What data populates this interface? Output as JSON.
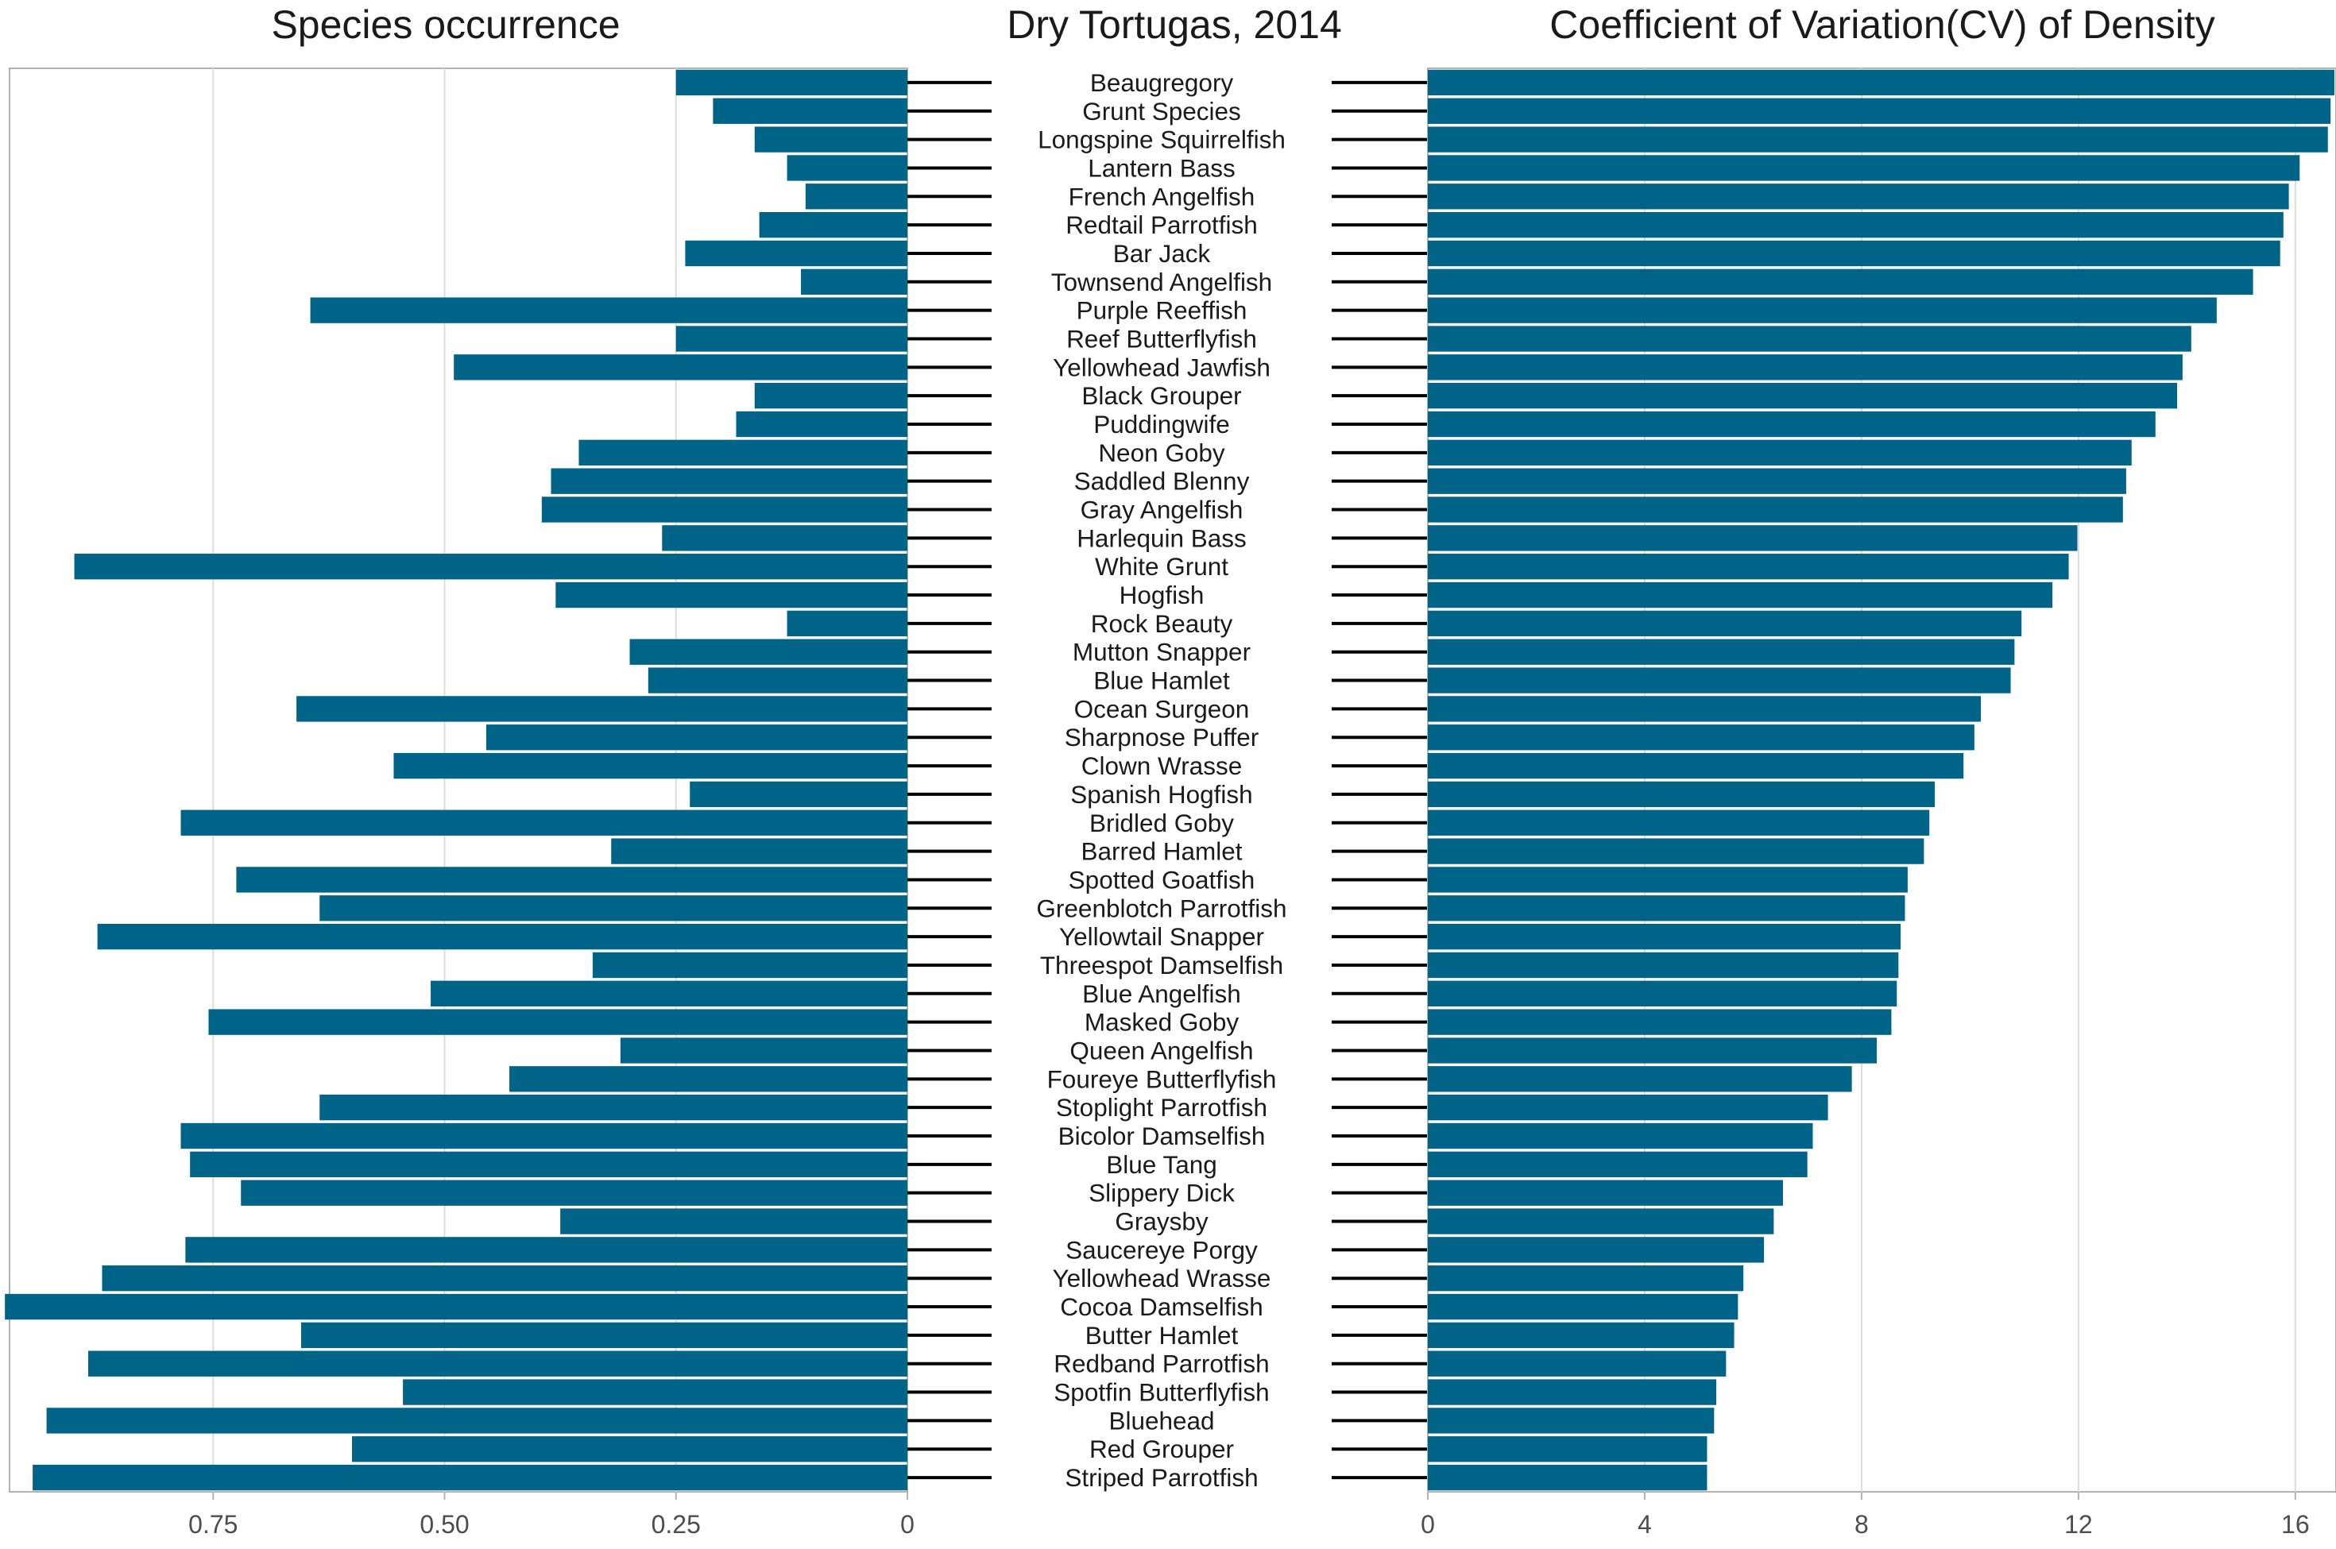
{
  "title": "Dry Tortugas, 2014",
  "colors": {
    "bar": "#006489",
    "grid": "#dcdcdc",
    "frame": "#b3b3b3",
    "connector": "#000000"
  },
  "chart_data": [
    {
      "type": "bar",
      "orientation": "horizontal",
      "direction": "right-to-left",
      "title": "Species occurrence",
      "xlim": [
        0,
        0.97
      ],
      "ticks": [
        0.75,
        0.5,
        0.25,
        0
      ],
      "tick_labels": [
        "0.75",
        "0.50",
        "0.25",
        "0"
      ],
      "grid": true,
      "categories": [
        "Beaugregory",
        "Grunt Species",
        "Longspine Squirrelfish",
        "Lantern Bass",
        "French Angelfish",
        "Redtail Parrotfish",
        "Bar Jack",
        "Townsend Angelfish",
        "Purple Reeffish",
        "Reef Butterflyfish",
        "Yellowhead Jawfish",
        "Black Grouper",
        "Puddingwife",
        "Neon Goby",
        "Saddled Blenny",
        "Gray Angelfish",
        "Harlequin Bass",
        "White Grunt",
        "Hogfish",
        "Rock Beauty",
        "Mutton Snapper",
        "Blue Hamlet",
        "Ocean Surgeon",
        "Sharpnose Puffer",
        "Clown Wrasse",
        "Spanish Hogfish",
        "Bridled Goby",
        "Barred Hamlet",
        "Spotted Goatfish",
        "Greenblotch Parrotfish",
        "Yellowtail Snapper",
        "Threespot Damselfish",
        "Blue Angelfish",
        "Masked Goby",
        "Queen Angelfish",
        "Foureye Butterflyfish",
        "Stoplight Parrotfish",
        "Bicolor Damselfish",
        "Blue Tang",
        "Slippery Dick",
        "Graysby",
        "Saucereye Porgy",
        "Yellowhead Wrasse",
        "Cocoa Damselfish",
        "Butter Hamlet",
        "Redband Parrotfish",
        "Spotfin Butterflyfish",
        "Bluehead",
        "Red Grouper",
        "Striped Parrotfish"
      ],
      "values": [
        0.25,
        0.21,
        0.165,
        0.13,
        0.11,
        0.16,
        0.24,
        0.115,
        0.645,
        0.25,
        0.49,
        0.165,
        0.185,
        0.355,
        0.385,
        0.395,
        0.265,
        0.9,
        0.38,
        0.13,
        0.3,
        0.28,
        0.66,
        0.455,
        0.555,
        0.235,
        0.785,
        0.32,
        0.725,
        0.635,
        0.875,
        0.34,
        0.515,
        0.755,
        0.31,
        0.43,
        0.635,
        0.785,
        0.775,
        0.72,
        0.375,
        0.78,
        0.87,
        0.975,
        0.655,
        0.885,
        0.545,
        0.93,
        0.6,
        0.945
      ]
    },
    {
      "type": "bar",
      "orientation": "horizontal",
      "title": "Coefficient of Variation(CV) of Density",
      "xlim": [
        0,
        16.75
      ],
      "ticks": [
        0,
        4,
        8,
        12,
        16
      ],
      "tick_labels": [
        "0",
        "4",
        "8",
        "12",
        "16"
      ],
      "grid": true,
      "categories": [
        "Beaugregory",
        "Grunt Species",
        "Longspine Squirrelfish",
        "Lantern Bass",
        "French Angelfish",
        "Redtail Parrotfish",
        "Bar Jack",
        "Townsend Angelfish",
        "Purple Reeffish",
        "Reef Butterflyfish",
        "Yellowhead Jawfish",
        "Black Grouper",
        "Puddingwife",
        "Neon Goby",
        "Saddled Blenny",
        "Gray Angelfish",
        "Harlequin Bass",
        "White Grunt",
        "Hogfish",
        "Rock Beauty",
        "Mutton Snapper",
        "Blue Hamlet",
        "Ocean Surgeon",
        "Sharpnose Puffer",
        "Clown Wrasse",
        "Spanish Hogfish",
        "Bridled Goby",
        "Barred Hamlet",
        "Spotted Goatfish",
        "Greenblotch Parrotfish",
        "Yellowtail Snapper",
        "Threespot Damselfish",
        "Blue Angelfish",
        "Masked Goby",
        "Queen Angelfish",
        "Foureye Butterflyfish",
        "Stoplight Parrotfish",
        "Bicolor Damselfish",
        "Blue Tang",
        "Slippery Dick",
        "Graysby",
        "Saucereye Porgy",
        "Yellowhead Wrasse",
        "Cocoa Damselfish",
        "Butter Hamlet",
        "Redband Parrotfish",
        "Spotfin Butterflyfish",
        "Bluehead",
        "Red Grouper",
        "Striped Parrotfish"
      ],
      "values": [
        16.72,
        16.65,
        16.6,
        16.08,
        15.88,
        15.78,
        15.72,
        15.22,
        14.55,
        14.08,
        13.92,
        13.82,
        13.42,
        12.98,
        12.88,
        12.82,
        11.98,
        11.82,
        11.52,
        10.95,
        10.82,
        10.75,
        10.2,
        10.08,
        9.88,
        9.35,
        9.25,
        9.15,
        8.85,
        8.8,
        8.72,
        8.68,
        8.65,
        8.55,
        8.28,
        7.82,
        7.38,
        7.1,
        7.0,
        6.55,
        6.38,
        6.2,
        5.82,
        5.72,
        5.65,
        5.5,
        5.32,
        5.28,
        5.15,
        5.15
      ]
    }
  ]
}
